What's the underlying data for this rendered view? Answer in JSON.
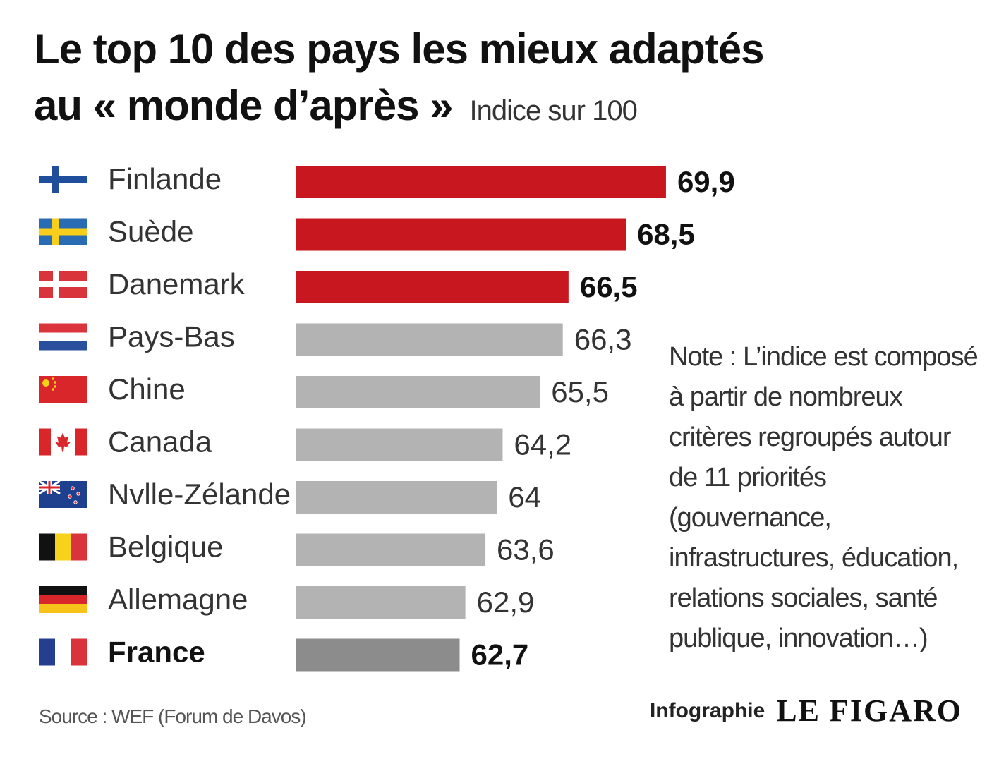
{
  "header": {
    "title_line1": "Le top 10 des pays les mieux adaptés",
    "title_line2": "au « monde d’après »",
    "subtitle": "Indice sur 100"
  },
  "chart_data": {
    "type": "bar",
    "orientation": "horizontal",
    "categories": [
      "Finlande",
      "Suède",
      "Danemark",
      "Pays-Bas",
      "Chine",
      "Canada",
      "Nvlle-Zélande",
      "Belgique",
      "Allemagne",
      "France"
    ],
    "values": [
      69.9,
      68.5,
      66.5,
      66.3,
      65.5,
      64.2,
      64,
      63.6,
      62.9,
      62.7
    ],
    "value_labels": [
      "69,9",
      "68,5",
      "66,5",
      "66,3",
      "65,5",
      "64,2",
      "64",
      "63,6",
      "62,9",
      "62,7"
    ],
    "bar_colors": [
      "#c8171e",
      "#c8171e",
      "#c8171e",
      "#b3b3b3",
      "#b3b3b3",
      "#b3b3b3",
      "#b3b3b3",
      "#b3b3b3",
      "#b3b3b3",
      "#8c8c8c"
    ],
    "bold_values": [
      true,
      true,
      true,
      false,
      false,
      false,
      false,
      false,
      false,
      true
    ],
    "highlight_category": "France",
    "flags": [
      "finland-flag-icon",
      "sweden-flag-icon",
      "denmark-flag-icon",
      "netherlands-flag-icon",
      "china-flag-icon",
      "canada-flag-icon",
      "new-zealand-flag-icon",
      "belgium-flag-icon",
      "germany-flag-icon",
      "france-flag-icon"
    ],
    "title": "Le top 10 des pays les mieux adaptés au « monde d’après »",
    "xlabel": "",
    "ylabel": "",
    "xlim": [
      57,
      70
    ]
  },
  "note": "Note : L’indice est composé à partir de nombreux critères regroupés autour de 11 priorités (gouvernance, infrastructures, éducation, relations sociales, santé publique, innovation…)",
  "footer": {
    "source": "Source : WEF (Forum de Davos)",
    "credit_prefix": "Infographie",
    "brand": "LE FIGARO"
  }
}
